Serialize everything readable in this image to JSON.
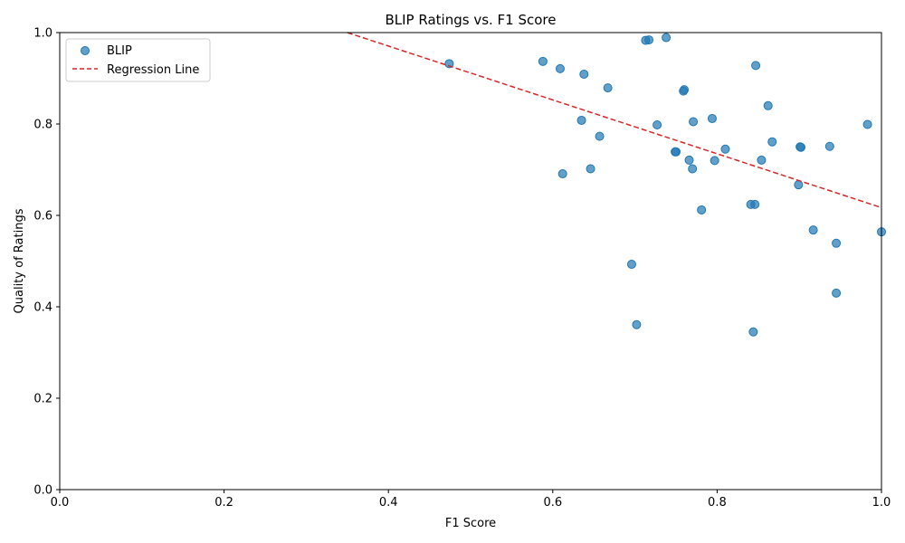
{
  "chart_data": {
    "type": "scatter",
    "title": "BLIP Ratings vs. F1 Score",
    "xlabel": "F1 Score",
    "ylabel": "Quality of Ratings",
    "xlim": [
      0,
      1
    ],
    "ylim": [
      0,
      1
    ],
    "x_ticks": [
      "0.0",
      "0.2",
      "0.4",
      "0.6",
      "0.8",
      "1.0"
    ],
    "y_ticks": [
      "0.0",
      "0.2",
      "0.4",
      "0.6",
      "0.8",
      "1.0"
    ],
    "grid": false,
    "legend_position": "upper-left",
    "series": [
      {
        "name": "BLIP",
        "kind": "scatter",
        "color": "#1f77b4",
        "points": [
          [
            0.474,
            0.932
          ],
          [
            0.588,
            0.937
          ],
          [
            0.609,
            0.921
          ],
          [
            0.612,
            0.691
          ],
          [
            0.635,
            0.808
          ],
          [
            0.638,
            0.909
          ],
          [
            0.646,
            0.702
          ],
          [
            0.657,
            0.773
          ],
          [
            0.667,
            0.879
          ],
          [
            0.696,
            0.493
          ],
          [
            0.702,
            0.361
          ],
          [
            0.713,
            0.983
          ],
          [
            0.717,
            0.984
          ],
          [
            0.727,
            0.798
          ],
          [
            0.738,
            0.989
          ],
          [
            0.749,
            0.739
          ],
          [
            0.75,
            0.739
          ],
          [
            0.759,
            0.872
          ],
          [
            0.76,
            0.875
          ],
          [
            0.766,
            0.721
          ],
          [
            0.77,
            0.702
          ],
          [
            0.771,
            0.805
          ],
          [
            0.781,
            0.612
          ],
          [
            0.794,
            0.812
          ],
          [
            0.797,
            0.72
          ],
          [
            0.81,
            0.745
          ],
          [
            0.841,
            0.624
          ],
          [
            0.844,
            0.345
          ],
          [
            0.846,
            0.624
          ],
          [
            0.847,
            0.928
          ],
          [
            0.854,
            0.721
          ],
          [
            0.862,
            0.84
          ],
          [
            0.867,
            0.761
          ],
          [
            0.899,
            0.667
          ],
          [
            0.901,
            0.75
          ],
          [
            0.902,
            0.749
          ],
          [
            0.917,
            0.568
          ],
          [
            0.937,
            0.751
          ],
          [
            0.945,
            0.539
          ],
          [
            0.945,
            0.43
          ],
          [
            0.983,
            0.799
          ],
          [
            1.0,
            0.564
          ]
        ]
      },
      {
        "name": "Regression Line",
        "kind": "line",
        "color": "#d62728",
        "line_style": "dashed",
        "points": [
          [
            0.35,
            1.0
          ],
          [
            1.0,
            0.617
          ]
        ]
      }
    ]
  }
}
